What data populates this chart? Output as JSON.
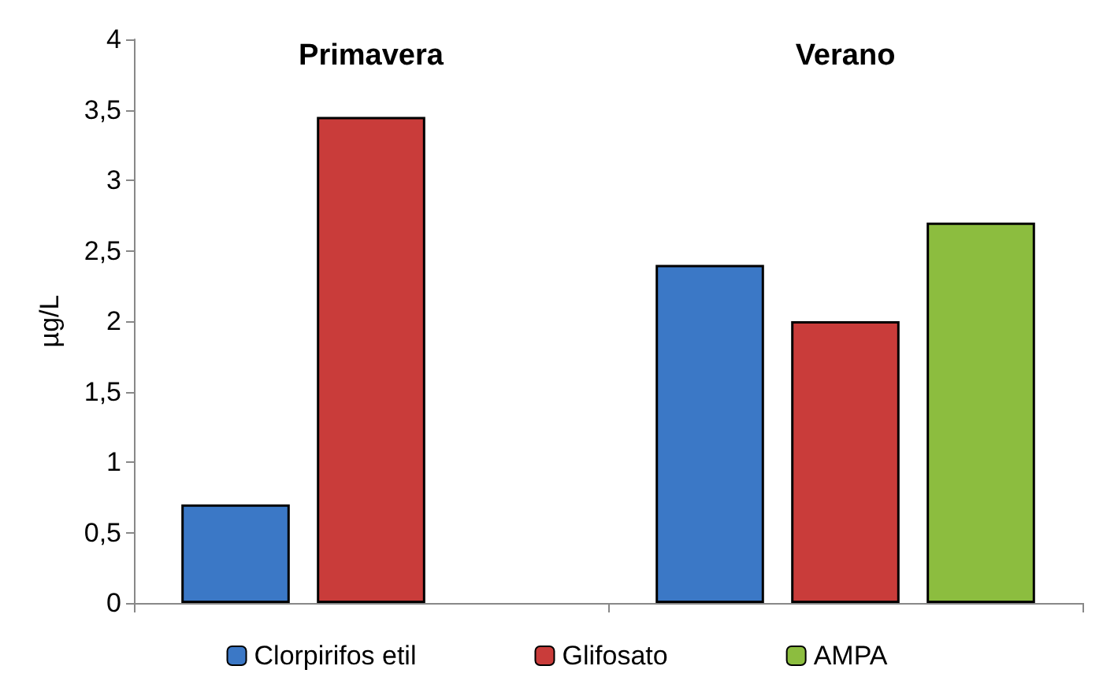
{
  "chart_data": {
    "type": "bar",
    "ylabel": "µg/L",
    "categories": [
      "Primavera",
      "Verano"
    ],
    "series": [
      {
        "name": "Clorpirifos etil",
        "color": "#3b78c6",
        "values": [
          0.7,
          2.4
        ]
      },
      {
        "name": "Glifosato",
        "color": "#c93c3a",
        "values": [
          3.45,
          2
        ]
      },
      {
        "name": "AMPA",
        "color": "#8cbd3f",
        "values": [
          null,
          2.7
        ]
      }
    ],
    "ylim": [
      0,
      4
    ],
    "yticks": [
      0,
      {
        "value": 0.5,
        "label": "0,5"
      },
      1,
      {
        "value": 1.5,
        "label": "1,5"
      },
      2,
      {
        "value": 2.5,
        "label": "2,5"
      },
      3,
      {
        "value": 3.5,
        "label": "3,5"
      },
      4
    ],
    "grid": false,
    "legend": "bottom"
  }
}
